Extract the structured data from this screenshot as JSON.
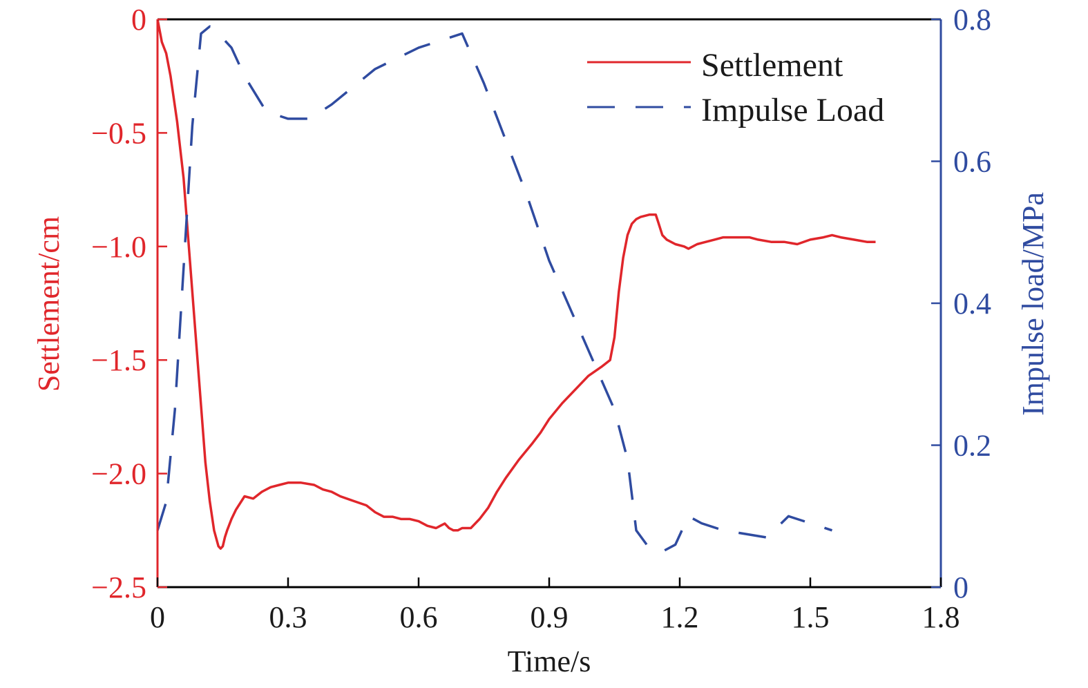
{
  "chart_data": {
    "type": "line",
    "xlabel": "Time/s",
    "ylabel_left": "Settlement/cm",
    "ylabel_right": "Impulse load/MPa",
    "xlim": [
      0,
      1.8
    ],
    "ylim_left": [
      -2.5,
      0
    ],
    "ylim_right": [
      0,
      0.8
    ],
    "x_ticks": [
      "0",
      "0.3",
      "0.6",
      "0.9",
      "1.2",
      "1.5",
      "1.8"
    ],
    "y_left_ticks": [
      "0",
      "−0.5",
      "−1.0",
      "−1.5",
      "−2.0",
      "−2.5"
    ],
    "y_right_ticks": [
      "0",
      "0.2",
      "0.4",
      "0.6",
      "0.8"
    ],
    "legend_position": "top-right",
    "grid": false,
    "colors": {
      "left_axis": "#e0262b",
      "right_axis": "#2f4ba0",
      "frame": "#000000"
    },
    "series": [
      {
        "name": "Settlement",
        "axis": "left",
        "style": "solid",
        "color": "#e0262b",
        "x": [
          0,
          0.005,
          0.01,
          0.02,
          0.03,
          0.045,
          0.06,
          0.07,
          0.08,
          0.09,
          0.1,
          0.11,
          0.12,
          0.13,
          0.14,
          0.145,
          0.15,
          0.155,
          0.16,
          0.17,
          0.18,
          0.2,
          0.22,
          0.24,
          0.26,
          0.28,
          0.3,
          0.33,
          0.36,
          0.38,
          0.4,
          0.42,
          0.45,
          0.48,
          0.5,
          0.52,
          0.54,
          0.56,
          0.58,
          0.6,
          0.62,
          0.64,
          0.66,
          0.67,
          0.68,
          0.69,
          0.7,
          0.72,
          0.74,
          0.76,
          0.78,
          0.8,
          0.83,
          0.86,
          0.88,
          0.9,
          0.93,
          0.96,
          0.99,
          1.02,
          1.04,
          1.05,
          1.06,
          1.07,
          1.08,
          1.09,
          1.1,
          1.11,
          1.13,
          1.145,
          1.15,
          1.16,
          1.17,
          1.19,
          1.21,
          1.22,
          1.24,
          1.26,
          1.28,
          1.3,
          1.33,
          1.36,
          1.38,
          1.41,
          1.44,
          1.47,
          1.5,
          1.53,
          1.55,
          1.57,
          1.6,
          1.63,
          1.65
        ],
        "values": [
          0,
          -0.05,
          -0.1,
          -0.15,
          -0.25,
          -0.45,
          -0.7,
          -0.95,
          -1.2,
          -1.45,
          -1.7,
          -1.95,
          -2.12,
          -2.25,
          -2.32,
          -2.33,
          -2.32,
          -2.28,
          -2.25,
          -2.2,
          -2.16,
          -2.1,
          -2.11,
          -2.08,
          -2.06,
          -2.05,
          -2.04,
          -2.04,
          -2.05,
          -2.07,
          -2.08,
          -2.1,
          -2.12,
          -2.14,
          -2.17,
          -2.19,
          -2.19,
          -2.2,
          -2.2,
          -2.21,
          -2.23,
          -2.24,
          -2.22,
          -2.24,
          -2.25,
          -2.25,
          -2.24,
          -2.24,
          -2.2,
          -2.15,
          -2.08,
          -2.02,
          -1.94,
          -1.87,
          -1.82,
          -1.76,
          -1.69,
          -1.63,
          -1.57,
          -1.53,
          -1.5,
          -1.4,
          -1.2,
          -1.05,
          -0.95,
          -0.9,
          -0.88,
          -0.87,
          -0.86,
          -0.86,
          -0.89,
          -0.95,
          -0.97,
          -0.99,
          -1.0,
          -1.01,
          -0.99,
          -0.98,
          -0.97,
          -0.96,
          -0.96,
          -0.96,
          -0.97,
          -0.98,
          -0.98,
          -0.99,
          -0.97,
          -0.96,
          -0.95,
          -0.96,
          -0.97,
          -0.98,
          -0.98
        ]
      },
      {
        "name": "Impulse Load",
        "axis": "right",
        "style": "dashed",
        "color": "#2f4ba0",
        "x": [
          0,
          0.02,
          0.04,
          0.06,
          0.08,
          0.1,
          0.12,
          0.14,
          0.17,
          0.2,
          0.25,
          0.3,
          0.35,
          0.4,
          0.5,
          0.6,
          0.7,
          0.75,
          0.8,
          0.85,
          0.9,
          0.95,
          1.0,
          1.05,
          1.08,
          1.1,
          1.13,
          1.16,
          1.19,
          1.22,
          1.25,
          1.3,
          1.35,
          1.4,
          1.45,
          1.5,
          1.55
        ],
        "values": [
          0.08,
          0.12,
          0.25,
          0.45,
          0.65,
          0.78,
          0.79,
          0.78,
          0.76,
          0.72,
          0.67,
          0.66,
          0.66,
          0.68,
          0.73,
          0.76,
          0.78,
          0.71,
          0.63,
          0.55,
          0.46,
          0.39,
          0.32,
          0.25,
          0.18,
          0.08,
          0.055,
          0.05,
          0.06,
          0.1,
          0.09,
          0.08,
          0.075,
          0.07,
          0.1,
          0.09,
          0.08
        ]
      }
    ]
  }
}
